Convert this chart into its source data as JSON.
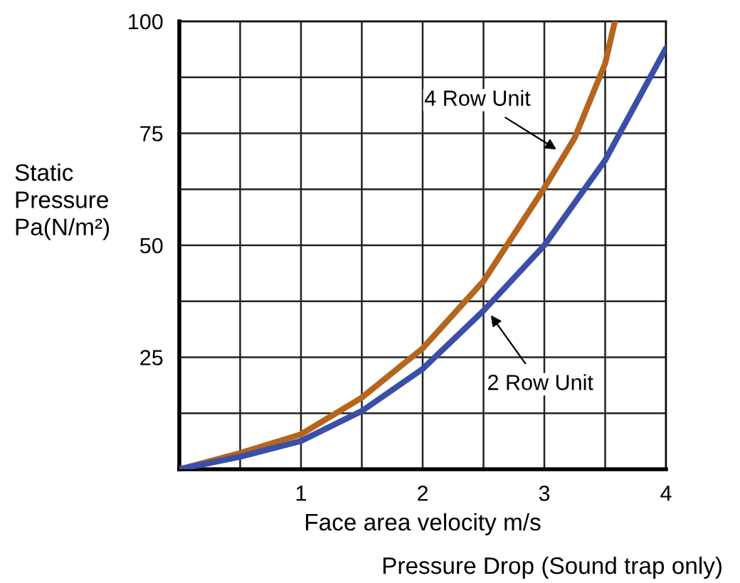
{
  "chart_data": {
    "type": "line",
    "xlabel": "Face area velocity m/s",
    "ylabel": "Static\nPressure\nPa(N/m²)",
    "xlim": [
      0,
      4
    ],
    "ylim": [
      0,
      100
    ],
    "xticks": [
      {
        "value": 0,
        "label": null
      },
      {
        "value": 0.5,
        "label": null
      },
      1,
      {
        "value": 1.5,
        "label": null
      },
      2,
      {
        "value": 2.5,
        "label": null
      },
      3,
      {
        "value": 3.5,
        "label": null
      },
      4
    ],
    "yticks": [
      {
        "value": 0,
        "label": null
      },
      {
        "value": 12.5,
        "label": null
      },
      25,
      {
        "value": 37.5,
        "label": null
      },
      50,
      {
        "value": 62.5,
        "label": null
      },
      75,
      {
        "value": 87.5,
        "label": null
      },
      100
    ],
    "grid": true,
    "legend": false,
    "marker": "none",
    "line_style": "solid",
    "series": [
      {
        "color": "#b5651d",
        "x": [
          0,
          0.5,
          1,
          1.5,
          2,
          2.5,
          3,
          3.25,
          3.5,
          3.58
        ],
        "values": [
          0,
          3.6,
          7.8,
          16,
          27,
          42,
          62.8,
          74,
          90.6,
          100
        ]
      },
      {
        "color": "#3a4fa8",
        "x": [
          0,
          0.5,
          1,
          1.5,
          2,
          2.5,
          3,
          3.5,
          4
        ],
        "values": [
          0,
          2.8,
          6.3,
          13,
          22.4,
          35.4,
          50,
          69,
          94
        ]
      }
    ],
    "annotations": [
      {
        "text": "4 Row Unit",
        "x": 3.1,
        "y": 71.4
      },
      {
        "text": "2 Row Unit",
        "x": 2.56,
        "y": 34.4
      },
      "Pressure Drop (Sound trap only)"
    ]
  }
}
